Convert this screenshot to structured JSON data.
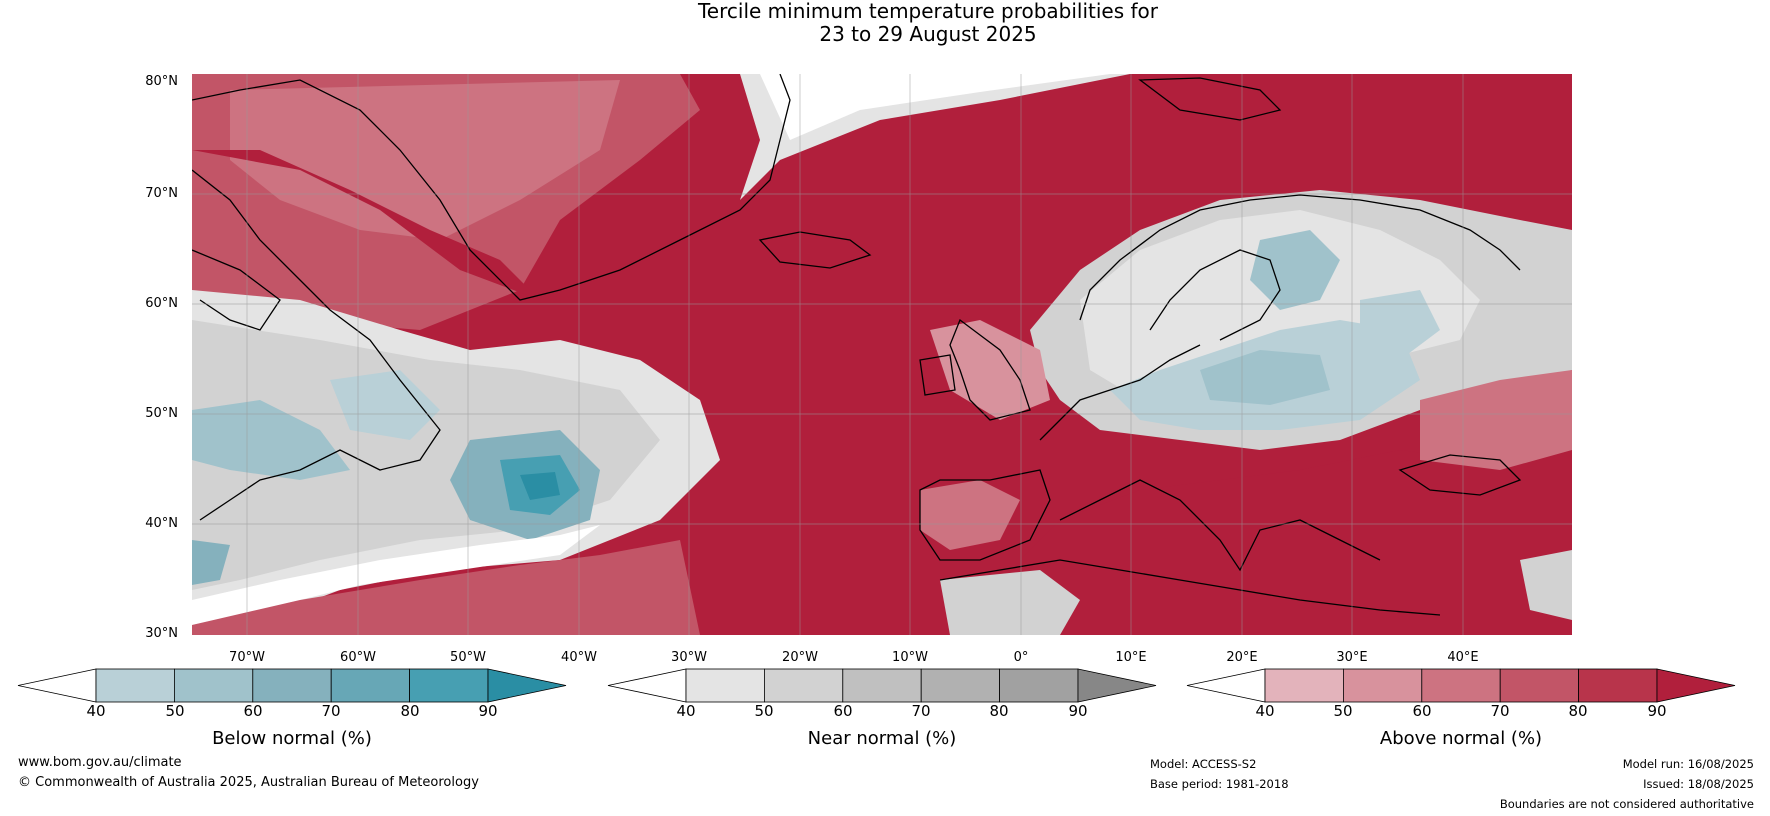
{
  "title": {
    "line1": "Tercile minimum temperature probabilities for",
    "line2": "23 to 29 August 2025"
  },
  "axes": {
    "lat_labels": [
      "80°N",
      "70°N",
      "60°N",
      "50°N",
      "40°N",
      "30°N"
    ],
    "lon_labels": [
      "70°W",
      "60°W",
      "50°W",
      "40°W",
      "30°W",
      "20°W",
      "10°W",
      "0°",
      "10°E",
      "20°E",
      "30°E",
      "40°E"
    ]
  },
  "colors": {
    "below": [
      "#b9d0d7",
      "#a0c2cb",
      "#85b1bd",
      "#67a7b6",
      "#479fb2",
      "#2a8ea4"
    ],
    "near": [
      "#e4e4e4",
      "#d2d2d2",
      "#c0c0c0",
      "#b1b1b1",
      "#a1a1a1",
      "#878787"
    ],
    "above": [
      "#e3b3bb",
      "#d8929d",
      "#cd7381",
      "#c25567",
      "#b8344b",
      "#b11f3c"
    ]
  },
  "colorbars": [
    {
      "label": "Below normal (%)",
      "ticks": [
        "40",
        "50",
        "60",
        "70",
        "80",
        "90"
      ]
    },
    {
      "label": "Near normal (%)",
      "ticks": [
        "40",
        "50",
        "60",
        "70",
        "80",
        "90"
      ]
    },
    {
      "label": "Above normal (%)",
      "ticks": [
        "40",
        "50",
        "60",
        "70",
        "80",
        "90"
      ]
    }
  ],
  "footer": {
    "website": "www.bom.gov.au/climate",
    "copyright": "© Commonwealth of Australia 2025, Australian Bureau of Meteorology",
    "model": "Model: ACCESS-S2",
    "base_period": "Base period: 1981-2018",
    "model_run": "Model run: 16/08/2025",
    "issued": "Issued: 18/08/2025",
    "disclaimer": "Boundaries are not considered authoritative"
  }
}
